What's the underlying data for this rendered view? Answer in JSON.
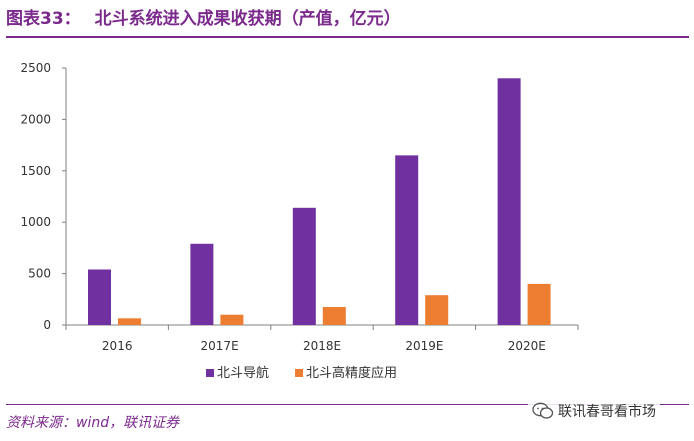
{
  "header": {
    "figure_label": "图表33：",
    "title": "北斗系统进入成果收获期（产值，亿元）"
  },
  "source": "资料来源：wind，联讯证券",
  "watermark": {
    "text": "联讯春哥看市场",
    "icon": "wechat-icon"
  },
  "colors": {
    "accent": "#7b2a8c",
    "series_1": "#7030a0",
    "series_2": "#ed7d31",
    "axis": "#808080"
  },
  "chart_data": {
    "type": "bar",
    "title": "北斗系统进入成果收获期（产值，亿元）",
    "xlabel": "",
    "ylabel": "",
    "categories": [
      "2016",
      "2017E",
      "2018E",
      "2019E",
      "2020E"
    ],
    "series": [
      {
        "name": "北斗导航",
        "color": "#7030a0",
        "values": [
          540,
          790,
          1140,
          1650,
          2400
        ]
      },
      {
        "name": "北斗高精度应用",
        "color": "#ed7d31",
        "values": [
          65,
          100,
          175,
          290,
          400
        ]
      }
    ],
    "ylim": [
      0,
      2500
    ],
    "yticks": [
      0,
      500,
      1000,
      1500,
      2000,
      2500
    ],
    "grid": false,
    "legend": "bottom"
  }
}
